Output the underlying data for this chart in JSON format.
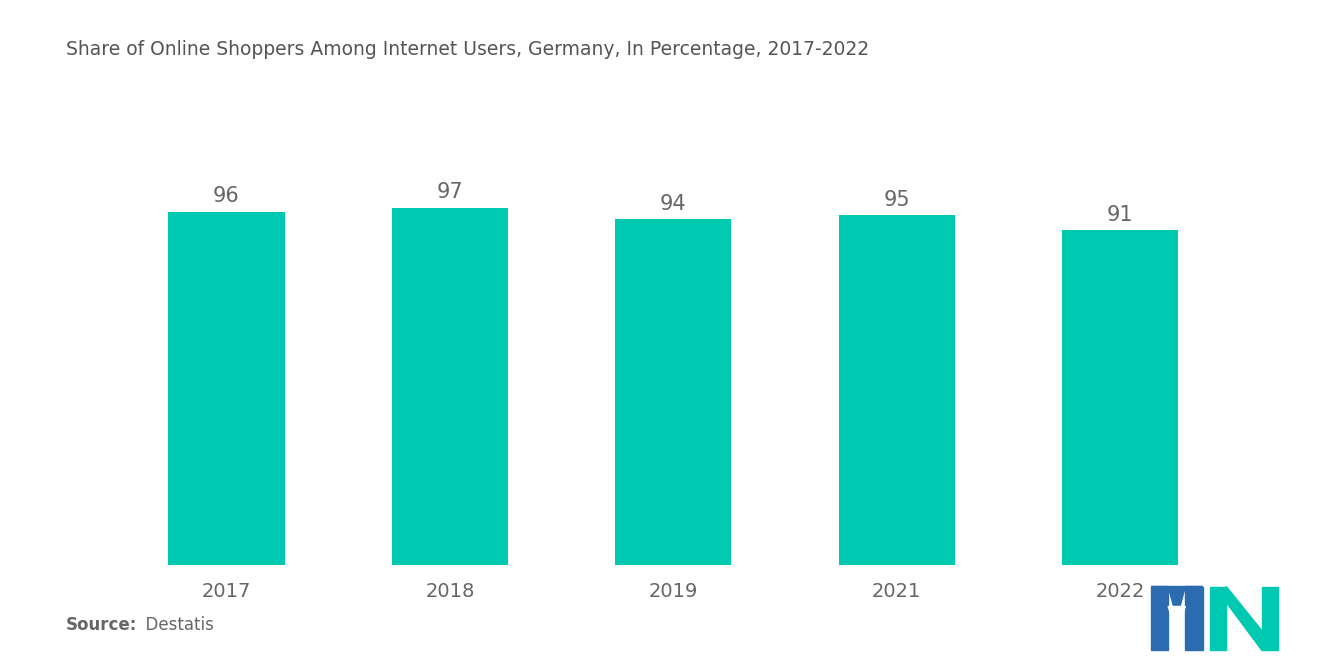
{
  "title": "Share of Online Shoppers Among Internet Users, Germany, In Percentage, 2017-2022",
  "categories": [
    "2017",
    "2018",
    "2019",
    "2021",
    "2022"
  ],
  "values": [
    96,
    97,
    94,
    95,
    91
  ],
  "bar_color": "#00C9B1",
  "bar_width": 0.52,
  "ylim": [
    0,
    130
  ],
  "value_color": "#666666",
  "value_fontsize": 15,
  "xtick_fontsize": 14,
  "title_fontsize": 13.5,
  "title_color": "#555555",
  "bg_color": "#ffffff",
  "source_bold": "Source:",
  "source_regular": "  Destatis",
  "source_fontsize": 12,
  "source_color": "#666666",
  "logo_blue": "#2B6CB0",
  "logo_teal": "#00C9B1"
}
